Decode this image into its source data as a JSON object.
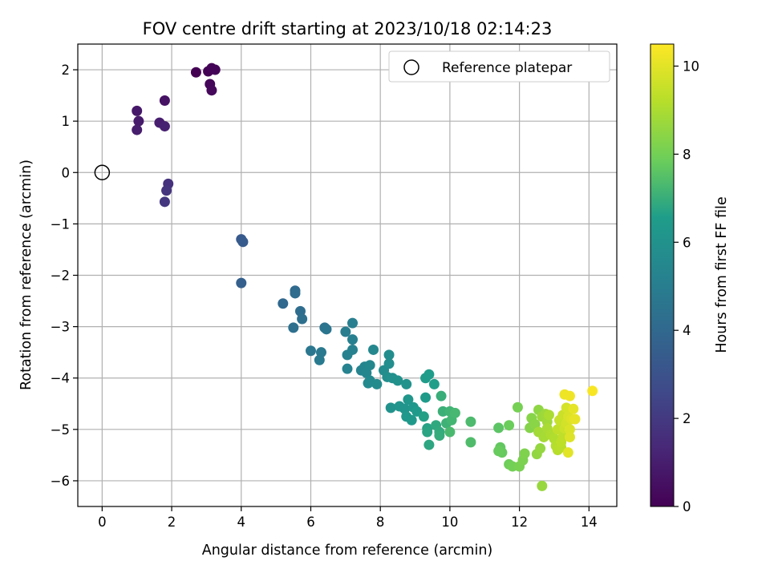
{
  "chart_data": {
    "type": "scatter",
    "title": "FOV centre drift starting at 2023/10/18 02:14:23",
    "xlabel": "Angular distance from reference (arcmin)",
    "ylabel": "Rotation from reference (arcmin)",
    "xlim": [
      -0.7,
      14.8
    ],
    "ylim": [
      -6.5,
      2.5
    ],
    "xticks": [
      0,
      2,
      4,
      6,
      8,
      10,
      12,
      14
    ],
    "yticks": [
      -6,
      -5,
      -4,
      -3,
      -2,
      -1,
      0,
      1,
      2
    ],
    "grid": true,
    "legend": {
      "position": "top-right",
      "label": "Reference platepar"
    },
    "reference_point": {
      "x": 0,
      "y": 0
    },
    "colorbar": {
      "label": "Hours from first FF file",
      "range": [
        0,
        10.5
      ],
      "ticks": [
        0,
        2,
        4,
        6,
        8,
        10
      ],
      "colormap": "viridis"
    },
    "points": [
      {
        "x": 2.7,
        "y": 1.95,
        "h": 0.0
      },
      {
        "x": 3.05,
        "y": 1.97,
        "h": 0.05
      },
      {
        "x": 3.15,
        "y": 2.03,
        "h": 0.1
      },
      {
        "x": 3.25,
        "y": 2.0,
        "h": 0.15
      },
      {
        "x": 3.1,
        "y": 1.72,
        "h": 0.2
      },
      {
        "x": 3.15,
        "y": 1.6,
        "h": 0.25
      },
      {
        "x": 1.8,
        "y": 1.4,
        "h": 0.6
      },
      {
        "x": 1.0,
        "y": 1.2,
        "h": 0.8
      },
      {
        "x": 1.05,
        "y": 1.0,
        "h": 0.9
      },
      {
        "x": 1.0,
        "y": 0.83,
        "h": 0.95
      },
      {
        "x": 1.65,
        "y": 0.97,
        "h": 1.0
      },
      {
        "x": 1.8,
        "y": 0.9,
        "h": 1.1
      },
      {
        "x": 1.9,
        "y": -0.22,
        "h": 1.7
      },
      {
        "x": 1.85,
        "y": -0.35,
        "h": 1.8
      },
      {
        "x": 1.8,
        "y": -0.57,
        "h": 1.9
      },
      {
        "x": 4.0,
        "y": -1.3,
        "h": 3.3
      },
      {
        "x": 4.05,
        "y": -1.35,
        "h": 3.4
      },
      {
        "x": 4.0,
        "y": -2.15,
        "h": 3.6
      },
      {
        "x": 5.2,
        "y": -2.55,
        "h": 4.0
      },
      {
        "x": 5.55,
        "y": -2.3,
        "h": 4.1
      },
      {
        "x": 5.55,
        "y": -2.35,
        "h": 4.15
      },
      {
        "x": 5.7,
        "y": -2.7,
        "h": 4.2
      },
      {
        "x": 5.75,
        "y": -2.85,
        "h": 4.3
      },
      {
        "x": 5.5,
        "y": -3.02,
        "h": 4.35
      },
      {
        "x": 6.4,
        "y": -3.02,
        "h": 4.5
      },
      {
        "x": 6.45,
        "y": -3.05,
        "h": 4.6
      },
      {
        "x": 6.0,
        "y": -3.47,
        "h": 4.7
      },
      {
        "x": 6.3,
        "y": -3.5,
        "h": 4.8
      },
      {
        "x": 6.25,
        "y": -3.65,
        "h": 4.85
      },
      {
        "x": 7.0,
        "y": -3.1,
        "h": 5.0
      },
      {
        "x": 7.2,
        "y": -2.93,
        "h": 5.05
      },
      {
        "x": 7.2,
        "y": -3.25,
        "h": 5.1
      },
      {
        "x": 7.2,
        "y": -3.45,
        "h": 5.15
      },
      {
        "x": 7.05,
        "y": -3.55,
        "h": 5.2
      },
      {
        "x": 7.05,
        "y": -3.82,
        "h": 5.25
      },
      {
        "x": 7.45,
        "y": -3.85,
        "h": 5.3
      },
      {
        "x": 7.55,
        "y": -3.78,
        "h": 5.35
      },
      {
        "x": 7.6,
        "y": -3.9,
        "h": 5.4
      },
      {
        "x": 7.7,
        "y": -3.75,
        "h": 5.45
      },
      {
        "x": 7.8,
        "y": -3.45,
        "h": 5.5
      },
      {
        "x": 7.7,
        "y": -4.05,
        "h": 5.55
      },
      {
        "x": 7.65,
        "y": -4.1,
        "h": 5.6
      },
      {
        "x": 7.9,
        "y": -4.12,
        "h": 5.65
      },
      {
        "x": 8.1,
        "y": -3.85,
        "h": 5.7
      },
      {
        "x": 8.25,
        "y": -3.55,
        "h": 5.75
      },
      {
        "x": 8.25,
        "y": -3.72,
        "h": 5.8
      },
      {
        "x": 8.2,
        "y": -3.98,
        "h": 5.85
      },
      {
        "x": 8.35,
        "y": -4.0,
        "h": 5.9
      },
      {
        "x": 8.5,
        "y": -4.05,
        "h": 5.95
      },
      {
        "x": 8.75,
        "y": -4.12,
        "h": 6.0
      },
      {
        "x": 8.3,
        "y": -4.58,
        "h": 6.05
      },
      {
        "x": 8.55,
        "y": -4.55,
        "h": 6.1
      },
      {
        "x": 8.7,
        "y": -4.6,
        "h": 6.15
      },
      {
        "x": 8.8,
        "y": -4.42,
        "h": 6.2
      },
      {
        "x": 8.95,
        "y": -4.57,
        "h": 6.25
      },
      {
        "x": 8.75,
        "y": -4.75,
        "h": 6.3
      },
      {
        "x": 8.9,
        "y": -4.82,
        "h": 6.35
      },
      {
        "x": 9.05,
        "y": -4.65,
        "h": 6.4
      },
      {
        "x": 9.3,
        "y": -4.38,
        "h": 6.45
      },
      {
        "x": 9.3,
        "y": -4.0,
        "h": 6.5
      },
      {
        "x": 9.4,
        "y": -3.93,
        "h": 6.55
      },
      {
        "x": 9.55,
        "y": -4.12,
        "h": 6.6
      },
      {
        "x": 9.25,
        "y": -4.75,
        "h": 6.65
      },
      {
        "x": 9.35,
        "y": -4.98,
        "h": 6.7
      },
      {
        "x": 9.35,
        "y": -5.05,
        "h": 6.75
      },
      {
        "x": 9.4,
        "y": -5.3,
        "h": 6.8
      },
      {
        "x": 9.6,
        "y": -4.92,
        "h": 6.85
      },
      {
        "x": 9.7,
        "y": -5.05,
        "h": 6.9
      },
      {
        "x": 9.7,
        "y": -5.12,
        "h": 6.95
      },
      {
        "x": 9.75,
        "y": -4.35,
        "h": 7.0
      },
      {
        "x": 9.8,
        "y": -4.65,
        "h": 7.05
      },
      {
        "x": 9.9,
        "y": -4.88,
        "h": 7.1
      },
      {
        "x": 10.0,
        "y": -4.65,
        "h": 7.15
      },
      {
        "x": 10.05,
        "y": -4.82,
        "h": 7.2
      },
      {
        "x": 10.15,
        "y": -4.68,
        "h": 7.25
      },
      {
        "x": 10.0,
        "y": -5.05,
        "h": 7.3
      },
      {
        "x": 10.6,
        "y": -4.85,
        "h": 7.35
      },
      {
        "x": 10.6,
        "y": -5.25,
        "h": 7.4
      },
      {
        "x": 11.4,
        "y": -4.97,
        "h": 7.6
      },
      {
        "x": 11.45,
        "y": -5.35,
        "h": 7.7
      },
      {
        "x": 11.5,
        "y": -5.45,
        "h": 7.75
      },
      {
        "x": 11.4,
        "y": -5.42,
        "h": 7.8
      },
      {
        "x": 11.7,
        "y": -4.92,
        "h": 7.85
      },
      {
        "x": 11.7,
        "y": -5.68,
        "h": 7.9
      },
      {
        "x": 11.8,
        "y": -5.72,
        "h": 8.0
      },
      {
        "x": 11.95,
        "y": -4.57,
        "h": 8.05
      },
      {
        "x": 12.0,
        "y": -5.72,
        "h": 8.1
      },
      {
        "x": 12.1,
        "y": -5.6,
        "h": 8.15
      },
      {
        "x": 12.15,
        "y": -5.47,
        "h": 8.2
      },
      {
        "x": 12.3,
        "y": -4.97,
        "h": 8.3
      },
      {
        "x": 12.35,
        "y": -4.78,
        "h": 8.35
      },
      {
        "x": 12.45,
        "y": -4.9,
        "h": 8.4
      },
      {
        "x": 12.55,
        "y": -4.62,
        "h": 8.5
      },
      {
        "x": 12.5,
        "y": -5.48,
        "h": 8.55
      },
      {
        "x": 12.6,
        "y": -5.37,
        "h": 8.6
      },
      {
        "x": 12.65,
        "y": -6.1,
        "h": 8.65
      },
      {
        "x": 12.65,
        "y": -4.75,
        "h": 8.7
      },
      {
        "x": 12.75,
        "y": -4.7,
        "h": 8.75
      },
      {
        "x": 12.8,
        "y": -4.85,
        "h": 8.8
      },
      {
        "x": 12.55,
        "y": -5.05,
        "h": 8.85
      },
      {
        "x": 12.7,
        "y": -5.15,
        "h": 8.9
      },
      {
        "x": 12.8,
        "y": -4.98,
        "h": 8.95
      },
      {
        "x": 12.85,
        "y": -4.72,
        "h": 9.0
      },
      {
        "x": 12.9,
        "y": -5.1,
        "h": 9.05
      },
      {
        "x": 13.0,
        "y": -5.18,
        "h": 9.1
      },
      {
        "x": 13.05,
        "y": -5.32,
        "h": 9.15
      },
      {
        "x": 13.1,
        "y": -5.4,
        "h": 9.2
      },
      {
        "x": 13.2,
        "y": -5.35,
        "h": 9.25
      },
      {
        "x": 13.2,
        "y": -5.25,
        "h": 9.3
      },
      {
        "x": 13.25,
        "y": -5.15,
        "h": 9.35
      },
      {
        "x": 13.1,
        "y": -5.0,
        "h": 9.4
      },
      {
        "x": 13.15,
        "y": -4.82,
        "h": 9.5
      },
      {
        "x": 13.25,
        "y": -4.72,
        "h": 9.55
      },
      {
        "x": 13.3,
        "y": -4.98,
        "h": 9.6
      },
      {
        "x": 13.35,
        "y": -4.88,
        "h": 9.7
      },
      {
        "x": 13.35,
        "y": -4.58,
        "h": 9.75
      },
      {
        "x": 13.4,
        "y": -4.75,
        "h": 9.8
      },
      {
        "x": 13.45,
        "y": -5.0,
        "h": 9.85
      },
      {
        "x": 13.45,
        "y": -5.15,
        "h": 9.9
      },
      {
        "x": 13.5,
        "y": -4.8,
        "h": 9.95
      },
      {
        "x": 13.4,
        "y": -5.45,
        "h": 10.0
      },
      {
        "x": 13.55,
        "y": -4.6,
        "h": 10.05
      },
      {
        "x": 13.6,
        "y": -4.8,
        "h": 10.1
      },
      {
        "x": 13.3,
        "y": -4.32,
        "h": 10.2
      },
      {
        "x": 13.45,
        "y": -4.35,
        "h": 10.25
      },
      {
        "x": 14.1,
        "y": -4.25,
        "h": 10.4
      }
    ]
  }
}
